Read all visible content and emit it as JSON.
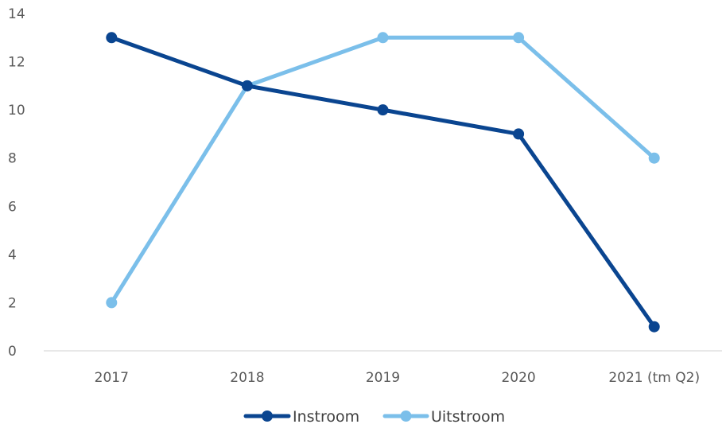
{
  "chart_data": {
    "type": "line",
    "categories": [
      "2017",
      "2018",
      "2019",
      "2020",
      "2021 (tm Q2)"
    ],
    "series": [
      {
        "name": "Instroom",
        "values": [
          13,
          11,
          10,
          9,
          1
        ],
        "color": "#0a4590"
      },
      {
        "name": "Uitstroom",
        "values": [
          2,
          11,
          13,
          13,
          8
        ],
        "color": "#7bbfea"
      }
    ],
    "ylim": [
      0,
      14
    ],
    "yticks": [
      "0",
      "2",
      "4",
      "6",
      "8",
      "10",
      "12",
      "14"
    ],
    "grid": false,
    "legend": "bottom",
    "axis_color": "#d9d9d9"
  }
}
